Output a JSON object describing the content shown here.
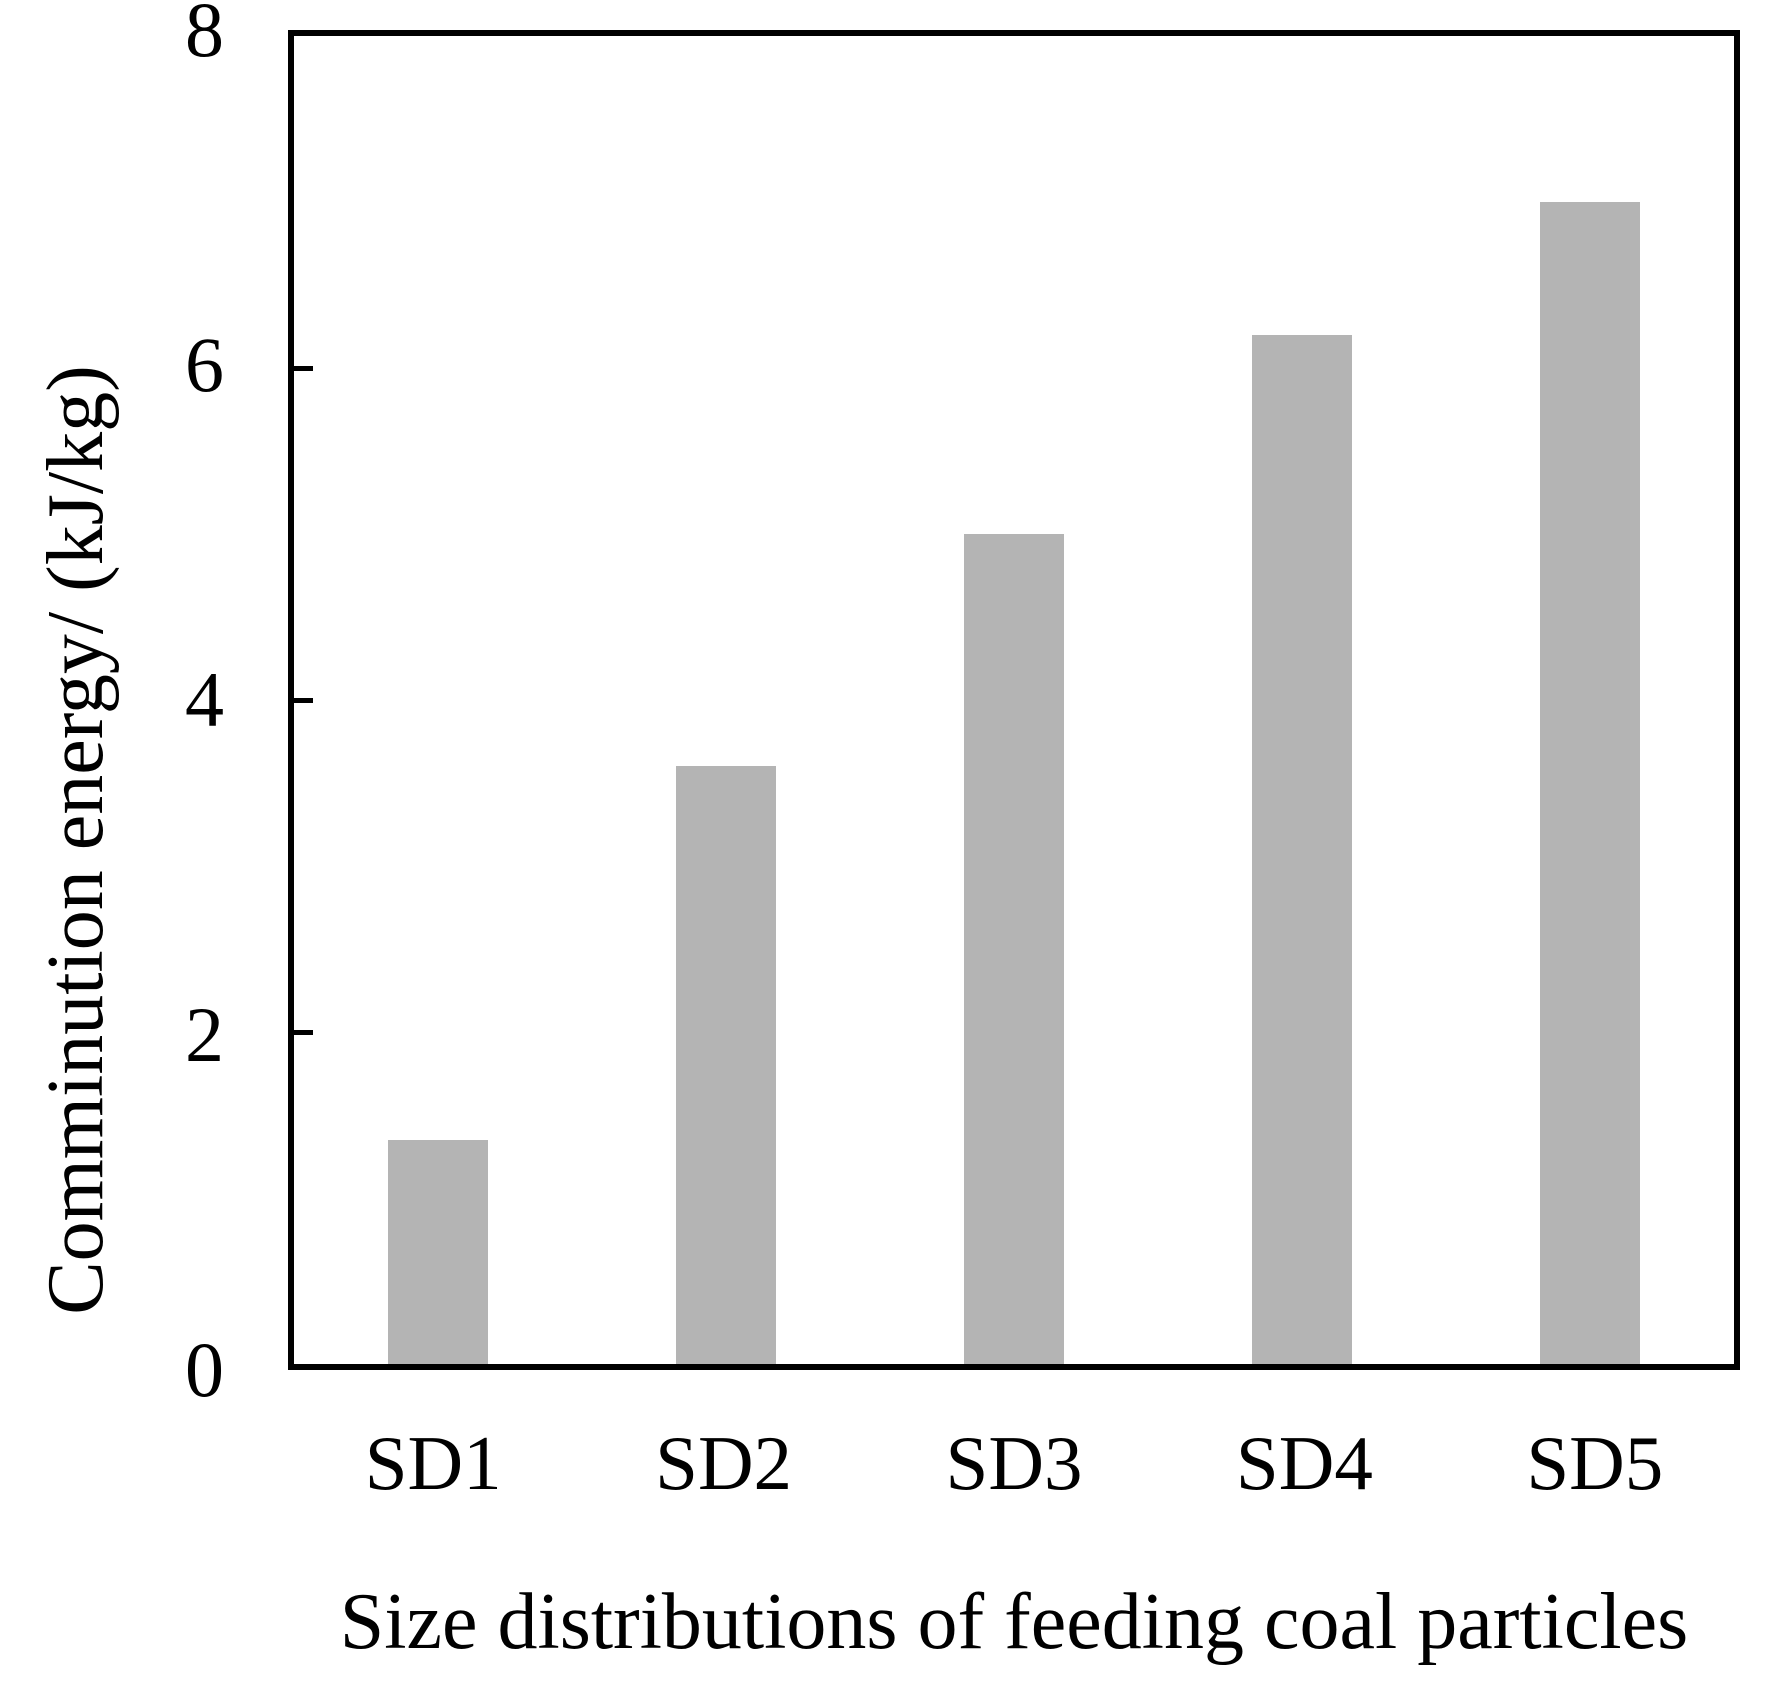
{
  "chart_data": {
    "type": "bar",
    "categories": [
      "SD1",
      "SD2",
      "SD3",
      "SD4",
      "SD5"
    ],
    "values": [
      1.35,
      3.6,
      5.0,
      6.2,
      7.0
    ],
    "title": "",
    "xlabel": "Size distributions of feeding coal particles",
    "ylabel": "Comminution energy/ (kJ/kg)",
    "ylim": [
      0,
      8
    ],
    "yticks": [
      0,
      2,
      4,
      6,
      8
    ],
    "grid": false,
    "legend_position": "none",
    "bar_color": "#b4b4b4",
    "axis_color": "#000000",
    "background_color": "#ffffff"
  }
}
